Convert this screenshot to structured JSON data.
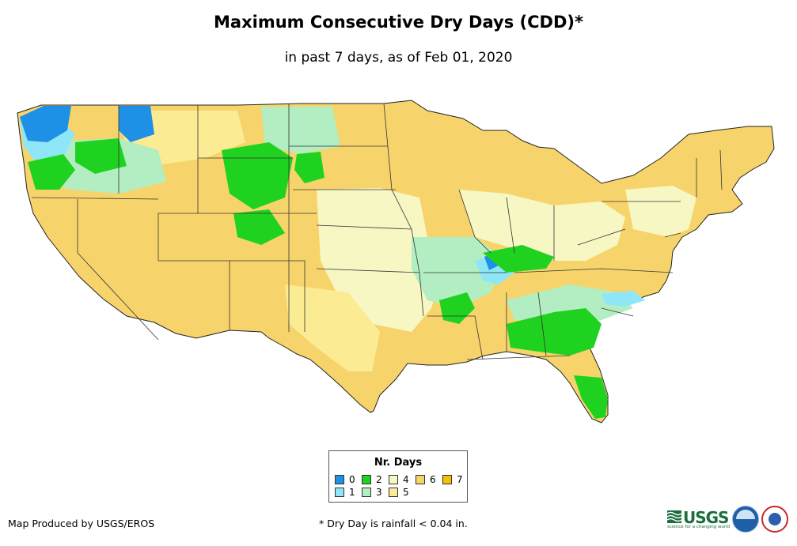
{
  "title": "Maximum Consecutive Dry Days (CDD)*",
  "subtitle": "in past 7 days, as of Feb 01, 2020",
  "legend": {
    "title": "Nr. Days",
    "items": [
      {
        "label": "0",
        "color": "#1e90e6"
      },
      {
        "label": "1",
        "color": "#8fe6f7"
      },
      {
        "label": "2",
        "color": "#1fd21f"
      },
      {
        "label": "3",
        "color": "#b2eec2"
      },
      {
        "label": "4",
        "color": "#f7f7c4"
      },
      {
        "label": "5",
        "color": "#fbec93"
      },
      {
        "label": "6",
        "color": "#f7d46b"
      },
      {
        "label": "7",
        "color": "#f5c000"
      }
    ]
  },
  "credit": "Map Produced by USGS/EROS",
  "footnote": "* Dry Day is rainfall < 0.04 in.",
  "logos": {
    "usgs_text": "USGS",
    "usgs_tagline": "science for a changing world"
  }
}
